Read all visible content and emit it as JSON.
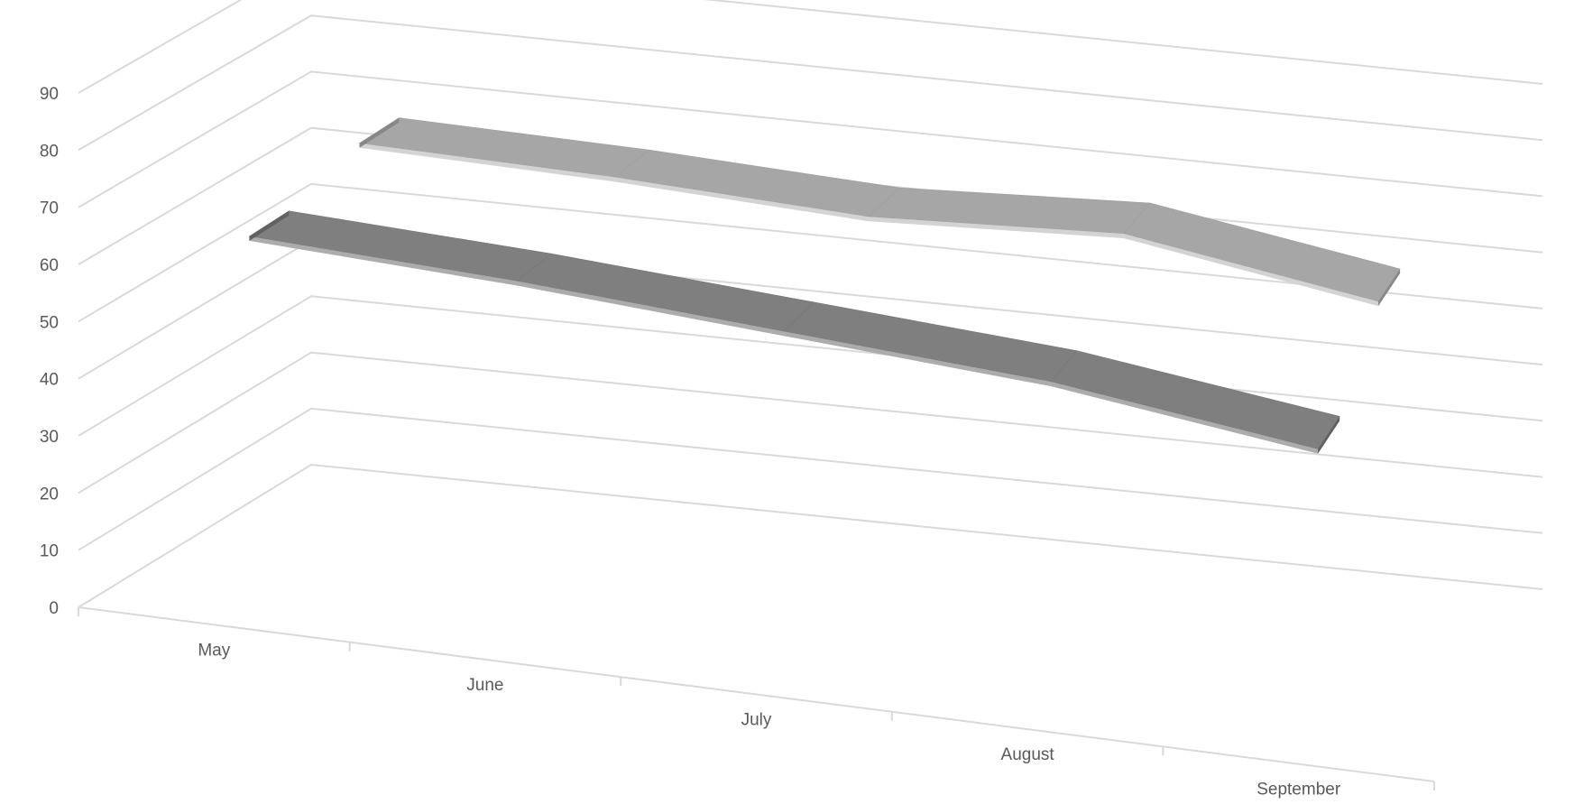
{
  "chart_data": {
    "type": "line",
    "style": "3d-ribbon",
    "title": "",
    "xlabel": "",
    "ylabel": "",
    "categories": [
      "May",
      "June",
      "July",
      "August",
      "September"
    ],
    "ylim": [
      0,
      90
    ],
    "yticks": [
      0,
      10,
      20,
      30,
      40,
      50,
      60,
      70,
      80,
      90
    ],
    "grid": true,
    "legend": "none",
    "series": [
      {
        "values": [
          68,
          67,
          65,
          67,
          60
        ],
        "color": "#a6a6a6"
      },
      {
        "values": [
          64,
          62,
          59,
          56,
          50
        ],
        "color": "#7f7f7f"
      }
    ]
  }
}
